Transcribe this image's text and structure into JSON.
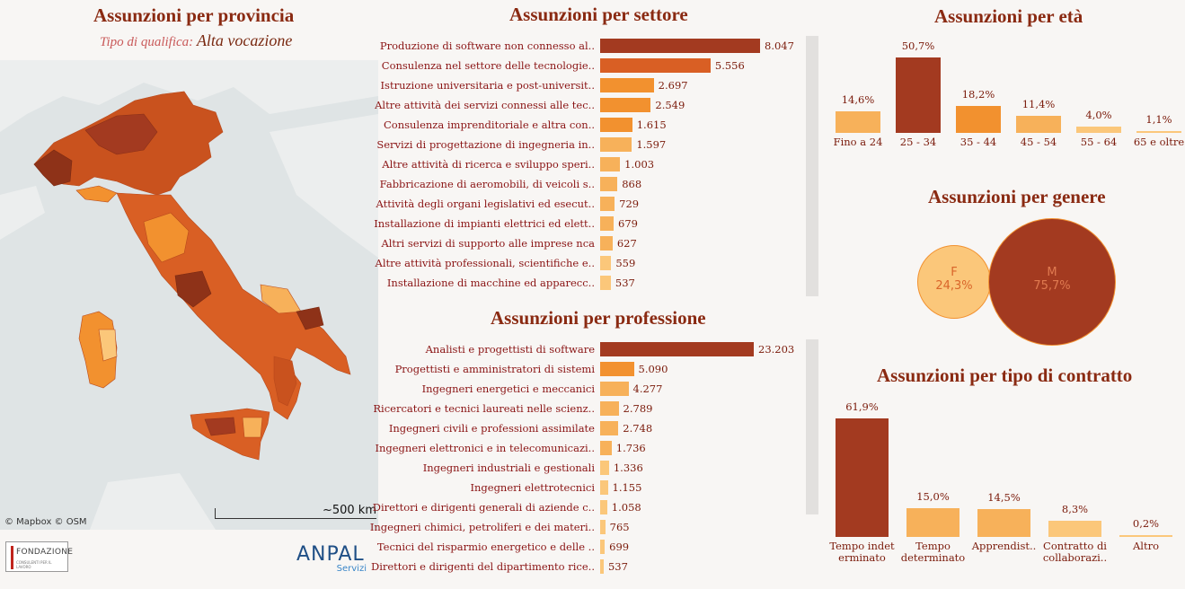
{
  "province": {
    "title": "Assunzioni per provincia",
    "filter_label": "Tipo di qualifica:",
    "filter_value": "Alta vocazione",
    "attribution": "© Mapbox  © OSM",
    "scale_label": "~500 km"
  },
  "logos": {
    "fondazione": "FONDAZIONE",
    "fondazione_sub": "CONSULENTI PER IL LAVORO",
    "anpal": "ANPAL",
    "anpal_sub": "Servizi"
  },
  "colors": {
    "dark": "#a33a20",
    "mid_dark": "#d95f24",
    "mid": "#f2912f",
    "light": "#f7b15a",
    "lightest": "#fbc77a"
  },
  "chart_data": [
    {
      "type": "bar",
      "orientation": "horizontal",
      "title": "Assunzioni per settore",
      "categories": [
        "Produzione di software non connesso al..",
        "Consulenza nel settore delle tecnologie..",
        "Istruzione universitaria e post-universit..",
        "Altre attività dei servizi connessi alle tec..",
        "Consulenza imprenditoriale e altra con..",
        "Servizi di progettazione di ingegneria in..",
        "Altre attività di ricerca e sviluppo speri..",
        "Fabbricazione di aeromobili, di veicoli s..",
        "Attività degli organi legislativi ed esecut..",
        "Installazione di impianti elettrici ed elett..",
        "Altri servizi di supporto alle imprese nca",
        "Altre attività professionali, scientifiche e..",
        "Installazione di macchine ed apparecc.."
      ],
      "values": [
        8047,
        5556,
        2697,
        2549,
        1615,
        1597,
        1003,
        868,
        729,
        679,
        627,
        559,
        537
      ],
      "labels": [
        "8.047",
        "5.556",
        "2.697",
        "2.549",
        "1.615",
        "1.597",
        "1.003",
        "868",
        "729",
        "679",
        "627",
        "559",
        "537"
      ],
      "xlim": [
        0,
        8047
      ]
    },
    {
      "type": "bar",
      "orientation": "horizontal",
      "title": "Assunzioni per professione",
      "categories": [
        "Analisti e progettisti di software",
        "Progettisti e amministratori di sistemi",
        "Ingegneri energetici e meccanici",
        "Ricercatori e tecnici laureati nelle scienz..",
        "Ingegneri civili e professioni assimilate",
        "Ingegneri elettronici e in telecomunicazi..",
        "Ingegneri industriali e gestionali",
        "Ingegneri elettrotecnici",
        "Direttori e dirigenti generali di aziende c..",
        "Ingegneri chimici, petroliferi e dei materi..",
        "Tecnici del risparmio energetico e delle ..",
        "Direttori e dirigenti del dipartimento rice.."
      ],
      "values": [
        23203,
        5090,
        4277,
        2789,
        2748,
        1736,
        1336,
        1155,
        1058,
        765,
        699,
        537
      ],
      "labels": [
        "23.203",
        "5.090",
        "4.277",
        "2.789",
        "2.748",
        "1.736",
        "1.336",
        "1.155",
        "1.058",
        "765",
        "699",
        "537"
      ],
      "xlim": [
        0,
        23203
      ]
    },
    {
      "type": "bar",
      "title": "Assunzioni per età",
      "categories": [
        "Fino a 24",
        "25 - 34",
        "35 - 44",
        "45 - 54",
        "55 - 64",
        "65 e oltre"
      ],
      "values": [
        14.6,
        50.7,
        18.2,
        11.4,
        4.0,
        1.1
      ],
      "labels": [
        "14,6%",
        "50,7%",
        "18,2%",
        "11,4%",
        "4,0%",
        "1,1%"
      ],
      "ylim": [
        0,
        50.7
      ]
    },
    {
      "type": "bubble",
      "title": "Assunzioni per genere",
      "categories": [
        "F",
        "M"
      ],
      "values": [
        24.3,
        75.7
      ],
      "labels": [
        "24,3%",
        "75,7%"
      ]
    },
    {
      "type": "bar",
      "title": "Assunzioni per tipo di contratto",
      "categories": [
        "Tempo indet erminato",
        "Tempo determinato",
        "Apprendist..",
        "Contratto di collaborazi..",
        "Altro"
      ],
      "values": [
        61.9,
        15.0,
        14.5,
        8.3,
        0.2
      ],
      "labels": [
        "61,9%",
        "15,0%",
        "14,5%",
        "8,3%",
        "0,2%"
      ],
      "ylim": [
        0,
        61.9
      ]
    }
  ]
}
